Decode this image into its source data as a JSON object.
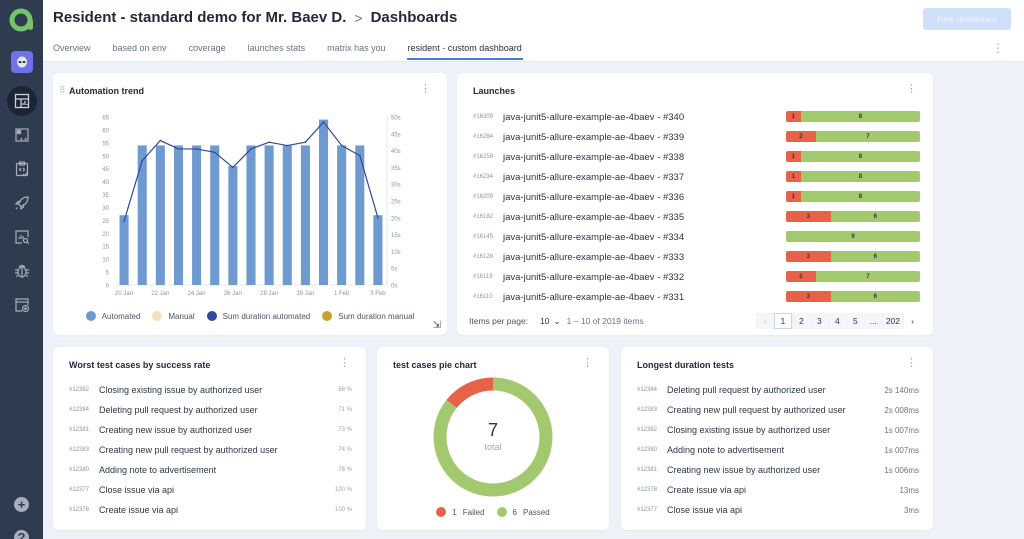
{
  "app": {
    "sidebar": {
      "items": [
        {
          "icon": "dashboard-icon",
          "active": true
        },
        {
          "icon": "test-cases-icon",
          "active": false
        },
        {
          "icon": "test-plans-icon",
          "active": false
        },
        {
          "icon": "launches-icon",
          "active": false
        },
        {
          "icon": "analytics-icon",
          "active": false
        },
        {
          "icon": "defects-icon",
          "active": false
        },
        {
          "icon": "jobs-icon",
          "active": false
        }
      ],
      "add_label": "+",
      "help_label": "?"
    }
  },
  "header": {
    "project": "Resident - standard demo for Mr. Baev D.",
    "separator": ">",
    "page": "Dashboards",
    "new_dashboard": "New dashboard",
    "tabs": [
      {
        "label": "Overview"
      },
      {
        "label": "based on env"
      },
      {
        "label": "coverage"
      },
      {
        "label": "launches stats"
      },
      {
        "label": "matrix has you"
      },
      {
        "label": "resident - custom dashboard",
        "active": true
      }
    ]
  },
  "trend": {
    "title": "Automation trend",
    "legend": [
      {
        "label": "Automated",
        "color": "#6f9ad0"
      },
      {
        "label": "Manual",
        "color": "#f1e2b8"
      },
      {
        "label": "Sum duration automated",
        "color": "#2f4a98"
      },
      {
        "label": "Sum duration manual",
        "color": "#c9a22d"
      }
    ]
  },
  "chart_data": {
    "type": "bar",
    "title": "Automation trend",
    "categories": [
      "20 Jan",
      "21 Jan",
      "22 Jan",
      "23 Jan",
      "24 Jan",
      "25 Jan",
      "26 Jan",
      "27 Jan",
      "28 Jan",
      "29 Jan",
      "30 Jan",
      "31 Jan",
      "1 Feb",
      "2 Feb",
      "3 Feb"
    ],
    "x_tick_labels": [
      "20 Jan",
      "22 Jan",
      "24 Jan",
      "26 Jan",
      "28 Jan",
      "30 Jan",
      "1 Feb",
      "3 Feb"
    ],
    "series": [
      {
        "name": "Automated",
        "type": "bar",
        "axis": "left",
        "values": [
          27,
          54,
          54,
          54,
          54,
          54,
          46,
          54,
          54,
          54,
          54,
          64,
          54,
          54,
          27
        ]
      },
      {
        "name": "Manual",
        "type": "bar",
        "axis": "left",
        "values": [
          0,
          0,
          0,
          0,
          0,
          0,
          0,
          0,
          0,
          0,
          0,
          0,
          0,
          0,
          0
        ]
      },
      {
        "name": "Sum duration automated",
        "type": "line",
        "axis": "right",
        "unit": "s",
        "values": [
          19,
          37,
          43,
          40.5,
          40.5,
          39.5,
          35,
          40.5,
          42.5,
          41.5,
          42.5,
          48.5,
          41.5,
          38.5,
          20
        ]
      },
      {
        "name": "Sum duration manual",
        "type": "line",
        "axis": "right",
        "unit": "s",
        "values": [
          0,
          0,
          0,
          0,
          0,
          0,
          0,
          0,
          0,
          0,
          0,
          0,
          0,
          0,
          0
        ]
      }
    ],
    "ylim": [
      0,
      65
    ],
    "yticks": [
      0,
      5,
      10,
      15,
      20,
      25,
      30,
      35,
      40,
      45,
      50,
      55,
      60,
      65
    ],
    "y2lim": [
      0,
      50
    ],
    "y2ticks": [
      "0s",
      "5s",
      "10s",
      "15s",
      "20s",
      "25s",
      "30s",
      "35s",
      "40s",
      "45s",
      "50s"
    ],
    "xlabel": "",
    "ylabel": "",
    "legend": "bottom"
  },
  "launches": {
    "title": "Launches",
    "rows": [
      {
        "id": "#16309",
        "name": "java-junit5-allure-example-ae-4baev - #340",
        "failed": 1,
        "passed": 8
      },
      {
        "id": "#16284",
        "name": "java-junit5-allure-example-ae-4baev - #339",
        "failed": 2,
        "passed": 7
      },
      {
        "id": "#16259",
        "name": "java-junit5-allure-example-ae-4baev - #338",
        "failed": 1,
        "passed": 8
      },
      {
        "id": "#16234",
        "name": "java-junit5-allure-example-ae-4baev - #337",
        "failed": 1,
        "passed": 8
      },
      {
        "id": "#16209",
        "name": "java-junit5-allure-example-ae-4baev - #336",
        "failed": 1,
        "passed": 8
      },
      {
        "id": "#16182",
        "name": "java-junit5-allure-example-ae-4baev - #335",
        "failed": 3,
        "passed": 6
      },
      {
        "id": "#16145",
        "name": "java-junit5-allure-example-ae-4baev - #334",
        "failed": 0,
        "passed": 9
      },
      {
        "id": "#16128",
        "name": "java-junit5-allure-example-ae-4baev - #333",
        "failed": 3,
        "passed": 6
      },
      {
        "id": "#16119",
        "name": "java-junit5-allure-example-ae-4baev - #332",
        "failed": 2,
        "passed": 7
      },
      {
        "id": "#16110",
        "name": "java-junit5-allure-example-ae-4baev - #331",
        "failed": 3,
        "passed": 6
      }
    ],
    "items_per_page_label": "Items per page:",
    "items_per_page": "10",
    "range": "1 – 10 of 2019 items",
    "pages": [
      "1",
      "2",
      "3",
      "4",
      "5",
      "...",
      "202"
    ],
    "current_page": "1",
    "prev": "‹",
    "next": "›",
    "colors": {
      "failed": "#e8624a",
      "passed": "#a3c96f"
    }
  },
  "worst": {
    "title": "Worst test cases by success rate",
    "rows": [
      {
        "id": "#12382",
        "name": "Closing existing issue by authorized user",
        "value": "68 %"
      },
      {
        "id": "#12384",
        "name": "Deleting pull request by authorized user",
        "value": "71 %"
      },
      {
        "id": "#12381",
        "name": "Creating new issue by authorized user",
        "value": "73 %"
      },
      {
        "id": "#12383",
        "name": "Creating new pull request by authorized user",
        "value": "74 %"
      },
      {
        "id": "#12380",
        "name": "Adding note to advertisement",
        "value": "76 %"
      },
      {
        "id": "#12377",
        "name": "Close issue via api",
        "value": "100 %"
      },
      {
        "id": "#12378",
        "name": "Create issue via api",
        "value": "100 %"
      }
    ]
  },
  "pie": {
    "title": "test cases pie chart",
    "total": "7",
    "total_label": "total",
    "slices": [
      {
        "label": "Failed",
        "value": 1,
        "color": "#e8624a"
      },
      {
        "label": "Passed",
        "value": 6,
        "color": "#a3c96f"
      }
    ]
  },
  "longest": {
    "title": "Longest duration tests",
    "rows": [
      {
        "id": "#12384",
        "name": "Deleting pull request by authorized user",
        "value": "2s 140ms"
      },
      {
        "id": "#12383",
        "name": "Creating new pull request by authorized user",
        "value": "2s 008ms"
      },
      {
        "id": "#12382",
        "name": "Closing existing issue by authorized user",
        "value": "1s 007ms"
      },
      {
        "id": "#12380",
        "name": "Adding note to advertisement",
        "value": "1s 007ms"
      },
      {
        "id": "#12381",
        "name": "Creating new issue by authorized user",
        "value": "1s 006ms"
      },
      {
        "id": "#12378",
        "name": "Create issue via api",
        "value": "13ms"
      },
      {
        "id": "#12377",
        "name": "Close issue via api",
        "value": "3ms"
      }
    ]
  }
}
